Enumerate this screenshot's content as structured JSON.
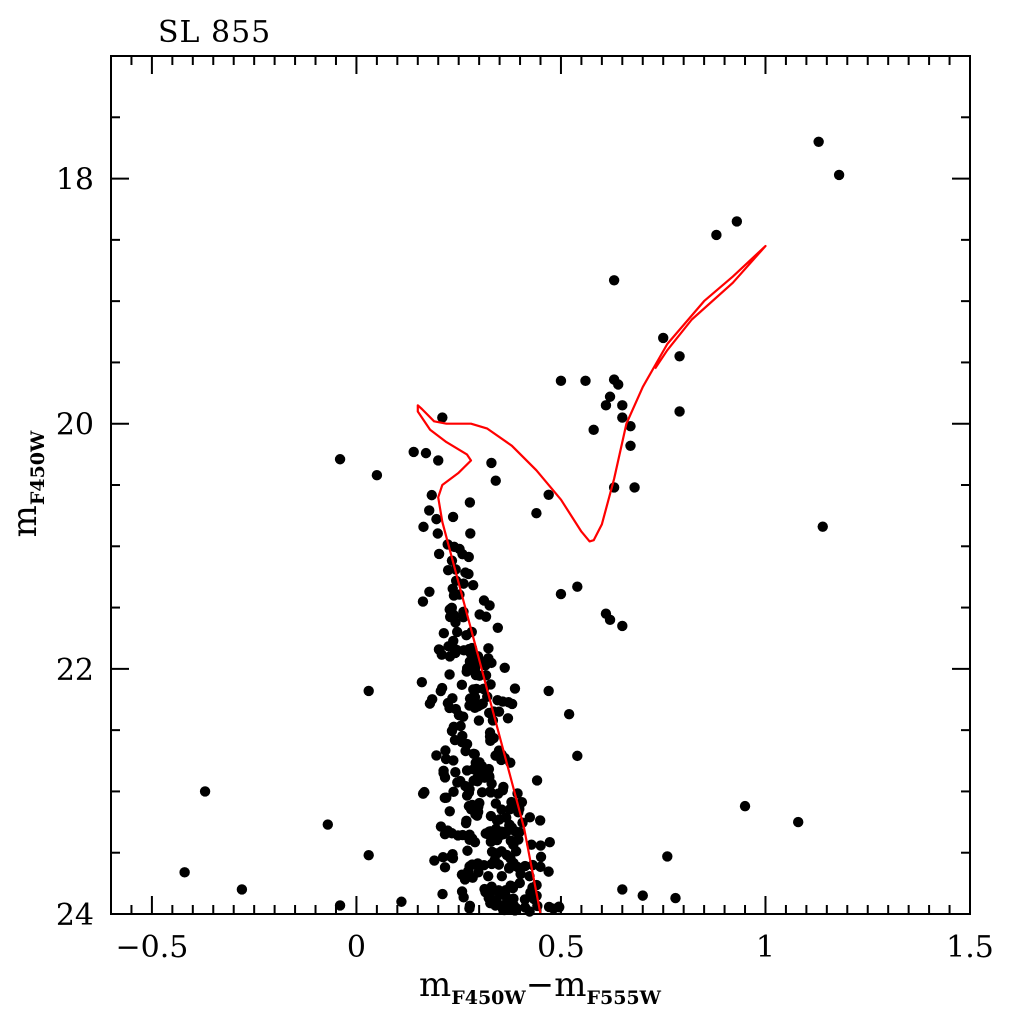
{
  "chart_data": {
    "type": "scatter",
    "title": "SL 855",
    "xlabel": {
      "main": "m",
      "sub1": "F450W",
      "sep": "−",
      "main2": "m",
      "sub2": "F555W"
    },
    "ylabel": {
      "main": "m",
      "sub": "F450W"
    },
    "xlim": [
      -0.6,
      1.5
    ],
    "ylim": [
      24,
      17
    ],
    "y_inverted": true,
    "xticks_major": [
      -0.5,
      0,
      0.5,
      1,
      1.5
    ],
    "xtick_labels": [
      "−0.5",
      "0",
      "0.5",
      "1",
      "1.5"
    ],
    "yticks_major": [
      18,
      20,
      22,
      24
    ],
    "ytick_labels": [
      "18",
      "20",
      "22",
      "24"
    ],
    "grid": false,
    "colors": {
      "points": "#000000",
      "isochrone": "#ff0000"
    },
    "series": [
      {
        "kind": "scatter",
        "points": [
          [
            1.13,
            17.7
          ],
          [
            1.18,
            17.97
          ],
          [
            0.93,
            18.35
          ],
          [
            0.88,
            18.46
          ],
          [
            0.63,
            18.83
          ],
          [
            0.75,
            19.3
          ],
          [
            0.79,
            19.45
          ],
          [
            0.5,
            19.65
          ],
          [
            0.56,
            19.65
          ],
          [
            0.63,
            19.64
          ],
          [
            0.64,
            19.68
          ],
          [
            0.62,
            19.78
          ],
          [
            0.61,
            19.85
          ],
          [
            0.65,
            19.85
          ],
          [
            0.79,
            19.9
          ],
          [
            0.65,
            19.95
          ],
          [
            0.21,
            19.95
          ],
          [
            0.67,
            20.02
          ],
          [
            0.58,
            20.05
          ],
          [
            0.67,
            20.18
          ],
          [
            0.14,
            20.23
          ],
          [
            0.17,
            20.24
          ],
          [
            -0.04,
            20.29
          ],
          [
            0.2,
            20.3
          ],
          [
            0.33,
            20.32
          ],
          [
            0.05,
            20.42
          ],
          [
            0.63,
            20.52
          ],
          [
            0.68,
            20.52
          ],
          [
            0.47,
            20.58
          ],
          [
            1.14,
            20.84
          ],
          [
            0.44,
            20.73
          ],
          [
            0.54,
            21.33
          ],
          [
            0.5,
            21.39
          ],
          [
            0.61,
            21.55
          ],
          [
            0.62,
            21.6
          ],
          [
            0.65,
            21.65
          ],
          [
            0.03,
            22.18
          ],
          [
            0.47,
            22.18
          ],
          [
            0.52,
            22.37
          ],
          [
            0.54,
            22.71
          ],
          [
            -0.37,
            23.0
          ],
          [
            0.95,
            23.12
          ],
          [
            1.08,
            23.25
          ],
          [
            -0.07,
            23.27
          ],
          [
            0.03,
            23.52
          ],
          [
            0.76,
            23.53
          ],
          [
            -0.42,
            23.66
          ],
          [
            -0.28,
            23.8
          ],
          [
            -0.04,
            23.93
          ],
          [
            0.78,
            23.87
          ],
          [
            0.65,
            23.8
          ],
          [
            0.7,
            23.85
          ],
          [
            0.11,
            23.9
          ],
          [
            0.39,
            23.95
          ]
        ],
        "cluster_region": {
          "color_range": [
            0.1,
            0.62
          ],
          "mag_range": [
            20.3,
            24.0
          ],
          "count": 330,
          "ridge_color_at_mag": [
            [
              20.5,
              0.22
            ],
            [
              21.0,
              0.24
            ],
            [
              22.0,
              0.27
            ],
            [
              23.0,
              0.31
            ],
            [
              24.0,
              0.37
            ]
          ]
        }
      },
      {
        "kind": "line",
        "points": [
          [
            0.45,
            24.0
          ],
          [
            0.41,
            23.3
          ],
          [
            0.37,
            22.8
          ],
          [
            0.33,
            22.3
          ],
          [
            0.29,
            21.8
          ],
          [
            0.25,
            21.3
          ],
          [
            0.21,
            20.8
          ],
          [
            0.2,
            20.6
          ],
          [
            0.21,
            20.5
          ],
          [
            0.25,
            20.4
          ],
          [
            0.28,
            20.3
          ],
          [
            0.27,
            20.25
          ],
          [
            0.22,
            20.15
          ],
          [
            0.18,
            20.05
          ],
          [
            0.15,
            19.9
          ],
          [
            0.15,
            19.85
          ],
          [
            0.16,
            19.88
          ],
          [
            0.19,
            19.98
          ],
          [
            0.22,
            20.0
          ],
          [
            0.28,
            20.0
          ],
          [
            0.32,
            20.04
          ],
          [
            0.38,
            20.18
          ],
          [
            0.44,
            20.38
          ],
          [
            0.5,
            20.62
          ],
          [
            0.55,
            20.88
          ],
          [
            0.57,
            20.96
          ],
          [
            0.58,
            20.95
          ],
          [
            0.6,
            20.82
          ],
          [
            0.63,
            20.45
          ],
          [
            0.66,
            20.0
          ],
          [
            0.7,
            19.7
          ],
          [
            0.76,
            19.35
          ],
          [
            0.85,
            19.0
          ],
          [
            0.92,
            18.8
          ],
          [
            1.0,
            18.55
          ],
          [
            0.92,
            18.85
          ],
          [
            0.82,
            19.15
          ],
          [
            0.76,
            19.4
          ],
          [
            0.73,
            19.55
          ]
        ]
      }
    ]
  }
}
